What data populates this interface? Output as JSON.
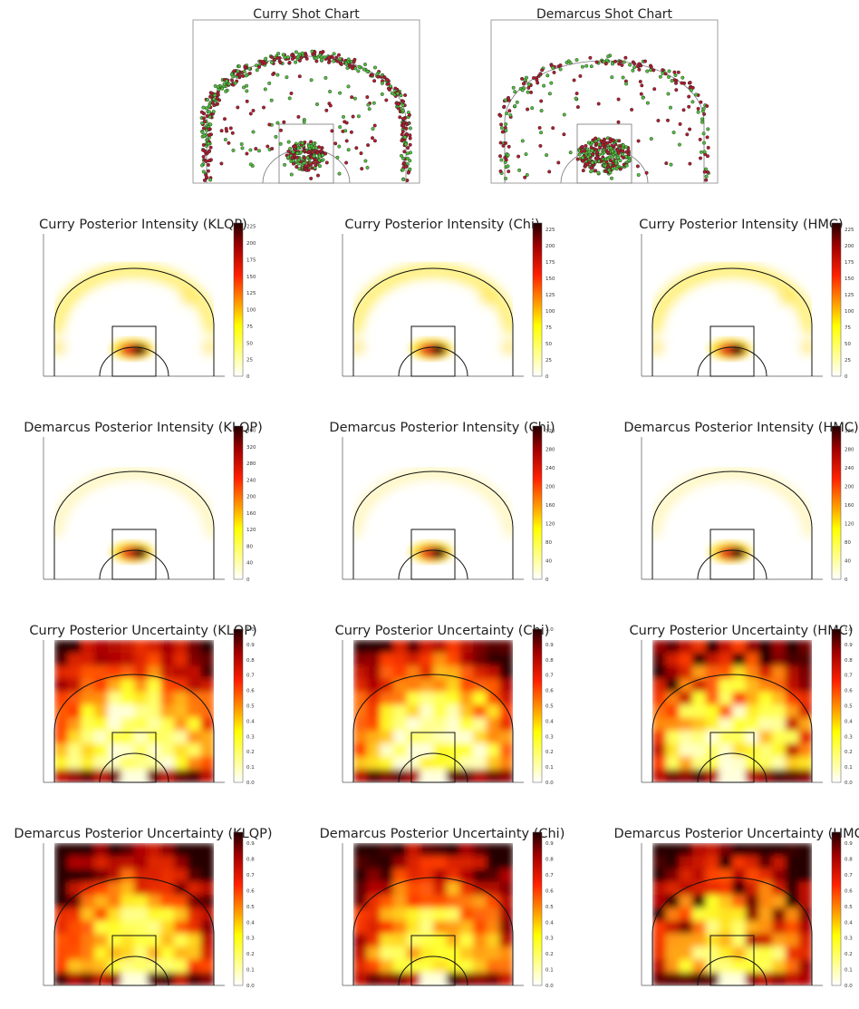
{
  "figure": {
    "shot_charts": [
      {
        "title": "Curry Shot Chart"
      },
      {
        "title": "Demarcus Shot Chart"
      }
    ],
    "heatmap_rows": [
      {
        "titles": [
          "Curry Posterior Intensity (KLQP)",
          "Curry Posterior Intensity (Chi)",
          "Curry Posterior Intensity (HMC)"
        ],
        "colorbar_ticks": [
          [
            "0",
            "25",
            "50",
            "75",
            "100",
            "125",
            "150",
            "175",
            "200",
            "225"
          ],
          [
            "0",
            "25",
            "50",
            "75",
            "100",
            "125",
            "150",
            "175",
            "200",
            "225"
          ],
          [
            "0",
            "25",
            "50",
            "75",
            "100",
            "125",
            "150",
            "175",
            "200",
            "225"
          ]
        ],
        "colorbar_max": [
          230,
          235,
          235
        ]
      },
      {
        "titles": [
          "Demarcus Posterior Intensity (KLQP)",
          "Demarcus Posterior Intensity (Chi)",
          "Demarcus Posterior Intensity (HMC)"
        ],
        "colorbar_ticks": [
          [
            "0",
            "40",
            "80",
            "120",
            "160",
            "200",
            "240",
            "280",
            "320",
            "360"
          ],
          [
            "0",
            "40",
            "80",
            "120",
            "160",
            "200",
            "240",
            "280",
            "320"
          ],
          [
            "0",
            "40",
            "80",
            "120",
            "160",
            "200",
            "240",
            "280",
            "320"
          ]
        ],
        "colorbar_max": [
          370,
          330,
          330
        ]
      },
      {
        "titles": [
          "Curry Posterior Uncertainty (KLQP)",
          "Curry Posterior Uncertainty (Chi)",
          "Curry Posterior Uncertainty (HMC)"
        ],
        "colorbar_ticks": [
          [
            "0.0",
            "0.1",
            "0.2",
            "0.3",
            "0.4",
            "0.5",
            "0.6",
            "0.7",
            "0.8",
            "0.9",
            "1.0"
          ],
          [
            "0.0",
            "0.1",
            "0.2",
            "0.3",
            "0.4",
            "0.5",
            "0.6",
            "0.7",
            "0.8",
            "0.9",
            "1.0"
          ],
          [
            "0.0",
            "0.1",
            "0.2",
            "0.3",
            "0.4",
            "0.5",
            "0.6",
            "0.7",
            "0.8",
            "0.9",
            "1.0"
          ]
        ],
        "colorbar_max": [
          1.0,
          1.0,
          1.0
        ]
      },
      {
        "titles": [
          "Demarcus Posterior Uncertainty (KLQP)",
          "Demarcus Posterior Uncertainty (Chi)",
          "Demarcus Posterior Uncertainty (HMC)"
        ],
        "colorbar_ticks": [
          [
            "0.0",
            "0.1",
            "0.2",
            "0.3",
            "0.4",
            "0.5",
            "0.6",
            "0.7",
            "0.8",
            "0.9"
          ],
          [
            "0.0",
            "0.1",
            "0.2",
            "0.3",
            "0.4",
            "0.5",
            "0.6",
            "0.7",
            "0.8",
            "0.9"
          ],
          [
            "0.0",
            "0.1",
            "0.2",
            "0.3",
            "0.4",
            "0.5",
            "0.6",
            "0.7",
            "0.8",
            "0.9"
          ]
        ],
        "colorbar_max": [
          0.97,
          0.97,
          0.97
        ]
      }
    ]
  },
  "chart_data": [
    {
      "type": "scatter",
      "title": "Curry Shot Chart",
      "xlabel": "",
      "ylabel": "",
      "grid": false,
      "description_of_points": "made/missed shot locations; green=made, red=missed",
      "colors": {
        "made": "#4fbf3a",
        "missed": "#b01c2e"
      }
    },
    {
      "type": "scatter",
      "title": "Demarcus Shot Chart",
      "xlabel": "",
      "ylabel": "",
      "grid": false,
      "colors": {
        "made": "#4fbf3a",
        "missed": "#b01c2e"
      }
    },
    {
      "type": "heatmap",
      "title": "Curry Posterior Intensity (KLQP)",
      "colorbar_range": [
        0,
        230
      ],
      "colormap": "hot_r"
    },
    {
      "type": "heatmap",
      "title": "Curry Posterior Intensity (Chi)",
      "colorbar_range": [
        0,
        235
      ],
      "colormap": "hot_r"
    },
    {
      "type": "heatmap",
      "title": "Curry Posterior Intensity (HMC)",
      "colorbar_range": [
        0,
        235
      ],
      "colormap": "hot_r"
    },
    {
      "type": "heatmap",
      "title": "Demarcus Posterior Intensity (KLQP)",
      "colorbar_range": [
        0,
        370
      ],
      "colormap": "hot_r"
    },
    {
      "type": "heatmap",
      "title": "Demarcus Posterior Intensity (Chi)",
      "colorbar_range": [
        0,
        330
      ],
      "colormap": "hot_r"
    },
    {
      "type": "heatmap",
      "title": "Demarcus Posterior Intensity (HMC)",
      "colorbar_range": [
        0,
        330
      ],
      "colormap": "hot_r"
    },
    {
      "type": "heatmap",
      "title": "Curry Posterior Uncertainty (KLQP)",
      "colorbar_range": [
        0,
        1.0
      ],
      "colormap": "hot_r"
    },
    {
      "type": "heatmap",
      "title": "Curry Posterior Uncertainty (Chi)",
      "colorbar_range": [
        0,
        1.0
      ],
      "colormap": "hot_r"
    },
    {
      "type": "heatmap",
      "title": "Curry Posterior Uncertainty (HMC)",
      "colorbar_range": [
        0,
        1.0
      ],
      "colormap": "hot_r"
    },
    {
      "type": "heatmap",
      "title": "Demarcus Posterior Uncertainty (KLQP)",
      "colorbar_range": [
        0,
        0.97
      ],
      "colormap": "hot_r"
    },
    {
      "type": "heatmap",
      "title": "Demarcus Posterior Uncertainty (Chi)",
      "colorbar_range": [
        0,
        0.97
      ],
      "colormap": "hot_r"
    },
    {
      "type": "heatmap",
      "title": "Demarcus Posterior Uncertainty (HMC)",
      "colorbar_range": [
        0,
        0.97
      ],
      "colormap": "hot_r"
    }
  ]
}
